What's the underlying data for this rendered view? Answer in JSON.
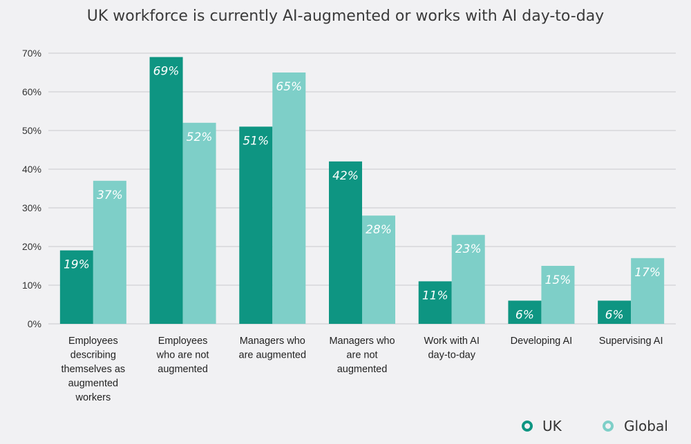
{
  "chart_data": {
    "type": "bar",
    "title": "UK workforce is currently AI-augmented or works with AI day-to-day",
    "categories": [
      [
        "Employees",
        "describing",
        "themselves as",
        "augmented",
        "workers"
      ],
      [
        "Employees",
        "who are not",
        "augmented"
      ],
      [
        "Managers who",
        "are augmented"
      ],
      [
        "Managers who",
        "are not",
        "augmented"
      ],
      [
        "Work with AI",
        "day-to-day"
      ],
      [
        "Developing AI"
      ],
      [
        "Supervising AI"
      ]
    ],
    "series": [
      {
        "name": "UK",
        "color": "#0e9582",
        "values": [
          19,
          69,
          51,
          42,
          11,
          6,
          6
        ],
        "labels": [
          "19%",
          "69%",
          "51%",
          "42%",
          "11%",
          "6%",
          "6%"
        ]
      },
      {
        "name": "Global",
        "color": "#7ecfc8",
        "values": [
          37,
          52,
          65,
          28,
          23,
          15,
          17
        ],
        "labels": [
          "37%",
          "52%",
          "65%",
          "28%",
          "23%",
          "15%",
          "17%"
        ]
      }
    ],
    "ylim": [
      0,
      70
    ],
    "yticks": [
      "0%",
      "10%",
      "20%",
      "30%",
      "40%",
      "50%",
      "60%",
      "70%"
    ],
    "xlabel": "",
    "ylabel": "",
    "grid": true,
    "legend_position": "bottom-right",
    "label_color": "#ffffff",
    "grid_color": "#c9c9cc",
    "background": "#f1f1f3"
  }
}
